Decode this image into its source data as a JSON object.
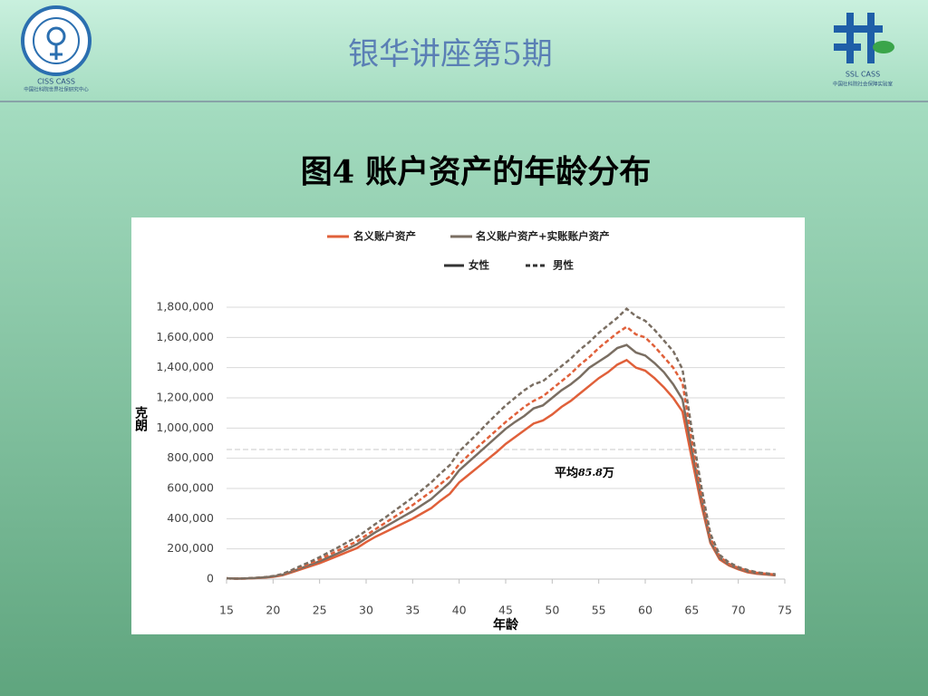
{
  "header": {
    "title": "银华讲座第5期",
    "left_logo": [
      "CISS CASS",
      "中国社科院世界社保研究中心"
    ],
    "right_logo": [
      "SSL CASS",
      "中国社科院社会保障实验室"
    ]
  },
  "heading": "图4  账户资产的年龄分布",
  "chart_data": {
    "type": "line",
    "x": [
      15,
      16,
      17,
      18,
      19,
      20,
      21,
      22,
      23,
      24,
      25,
      26,
      27,
      28,
      29,
      30,
      31,
      32,
      33,
      34,
      35,
      36,
      37,
      38,
      39,
      40,
      41,
      42,
      43,
      44,
      45,
      46,
      47,
      48,
      49,
      50,
      51,
      52,
      53,
      54,
      55,
      56,
      57,
      58,
      59,
      60,
      61,
      62,
      63,
      64,
      65,
      66,
      67,
      68,
      69,
      70,
      71,
      72,
      73,
      74
    ],
    "series": [
      {
        "name": "名义账户资产",
        "sex": "女性",
        "color": "#e0603a",
        "dash": false,
        "values": [
          5000,
          3000,
          4000,
          6000,
          10000,
          15000,
          25000,
          45000,
          65000,
          85000,
          105000,
          130000,
          155000,
          180000,
          205000,
          245000,
          280000,
          310000,
          340000,
          370000,
          400000,
          435000,
          470000,
          520000,
          565000,
          640000,
          690000,
          740000,
          790000,
          840000,
          895000,
          940000,
          985000,
          1030000,
          1050000,
          1090000,
          1140000,
          1180000,
          1230000,
          1280000,
          1330000,
          1370000,
          1420000,
          1450000,
          1400000,
          1380000,
          1330000,
          1270000,
          1200000,
          1110000,
          800000,
          500000,
          240000,
          130000,
          90000,
          65000,
          45000,
          35000,
          30000,
          25000
        ]
      },
      {
        "name": "名义账户资产+实账账户资产",
        "sex": "女性",
        "color": "#7a6e62",
        "dash": false,
        "values": [
          5000,
          3000,
          4000,
          7000,
          11000,
          17000,
          28000,
          50000,
          72000,
          95000,
          118000,
          145000,
          172000,
          200000,
          230000,
          270000,
          310000,
          345000,
          380000,
          415000,
          450000,
          490000,
          530000,
          585000,
          640000,
          720000,
          775000,
          830000,
          885000,
          940000,
          995000,
          1040000,
          1080000,
          1130000,
          1150000,
          1200000,
          1250000,
          1290000,
          1340000,
          1400000,
          1440000,
          1480000,
          1530000,
          1550000,
          1500000,
          1480000,
          1430000,
          1370000,
          1290000,
          1190000,
          860000,
          540000,
          250000,
          140000,
          95000,
          70000,
          50000,
          38000,
          32000,
          27000
        ]
      },
      {
        "name": "名义账户资产",
        "sex": "男性",
        "color": "#e0603a",
        "dash": true,
        "values": [
          5000,
          3000,
          4000,
          7000,
          11000,
          18000,
          30000,
          55000,
          80000,
          105000,
          130000,
          160000,
          190000,
          220000,
          250000,
          290000,
          330000,
          370000,
          410000,
          450000,
          490000,
          535000,
          580000,
          630000,
          680000,
          760000,
          820000,
          875000,
          930000,
          985000,
          1040000,
          1090000,
          1140000,
          1180000,
          1210000,
          1260000,
          1310000,
          1360000,
          1420000,
          1470000,
          1530000,
          1580000,
          1630000,
          1670000,
          1620000,
          1600000,
          1540000,
          1470000,
          1400000,
          1300000,
          920000,
          570000,
          270000,
          150000,
          100000,
          75000,
          55000,
          42000,
          35000,
          30000
        ]
      },
      {
        "name": "名义账户资产+实账账户资产",
        "sex": "男性",
        "color": "#7a6e62",
        "dash": true,
        "values": [
          5000,
          3000,
          5000,
          8000,
          12000,
          20000,
          34000,
          60000,
          88000,
          115000,
          145000,
          178000,
          210000,
          245000,
          278000,
          320000,
          365000,
          405000,
          450000,
          495000,
          540000,
          590000,
          640000,
          700000,
          755000,
          845000,
          905000,
          965000,
          1030000,
          1090000,
          1150000,
          1200000,
          1250000,
          1290000,
          1310000,
          1360000,
          1410000,
          1460000,
          1520000,
          1570000,
          1630000,
          1680000,
          1730000,
          1790000,
          1740000,
          1710000,
          1650000,
          1580000,
          1510000,
          1390000,
          990000,
          620000,
          300000,
          160000,
          110000,
          80000,
          60000,
          45000,
          38000,
          32000
        ]
      }
    ],
    "xlim": [
      15,
      75
    ],
    "xticks": [
      15,
      20,
      25,
      30,
      35,
      40,
      45,
      50,
      55,
      60,
      65,
      70,
      75
    ],
    "ylim": [
      0,
      1800000
    ],
    "yticks": [
      0,
      {
        "value": 200000,
        "label": "200,000"
      },
      {
        "value": 400000,
        "label": "400,000"
      },
      {
        "value": 600000,
        "label": "600,000"
      },
      {
        "value": 800000,
        "label": "800,000"
      },
      {
        "value": 1000000,
        "label": "1,000,000"
      },
      {
        "value": 1200000,
        "label": "1,200,000"
      },
      {
        "value": 1400000,
        "label": "1,400,000"
      },
      {
        "value": 1600000,
        "label": "1,600,000"
      },
      {
        "value": 1800000,
        "label": "1,800,000"
      }
    ],
    "grid": true,
    "xlabel": "年龄",
    "ylabel": "克朗",
    "reference_line": {
      "value": 858000,
      "label_parts": [
        "平均",
        "85.8",
        "万"
      ]
    }
  }
}
